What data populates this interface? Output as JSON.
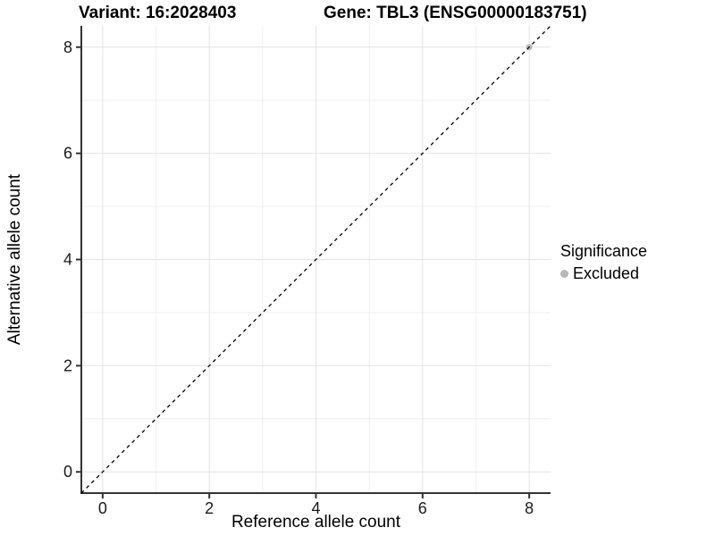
{
  "chart_data": {
    "type": "scatter",
    "titles": {
      "left": "Variant: 16:2028403",
      "right": "Gene: TBL3 (ENSG00000183751)"
    },
    "xlabel": "Reference allele count",
    "ylabel": "Alternative allele count",
    "xlim": [
      -0.4,
      8.4
    ],
    "ylim": [
      -0.4,
      8.4
    ],
    "xticks": [
      0,
      2,
      4,
      6,
      8
    ],
    "yticks": [
      0,
      2,
      4,
      6,
      8
    ],
    "minor_gridlines_x": [
      1,
      3,
      5,
      7
    ],
    "minor_gridlines_y": [
      1,
      3,
      5,
      7
    ],
    "grid": "on",
    "identity_line": {
      "style": "dashed",
      "color": "#000000",
      "from": [
        -0.4,
        -0.4
      ],
      "to": [
        8.4,
        8.4
      ]
    },
    "series": [
      {
        "name": "Excluded",
        "color": "#b8b8b8",
        "points": [
          [
            8,
            8
          ]
        ]
      }
    ],
    "legend": {
      "title": "Significance",
      "position": "right",
      "items": [
        {
          "label": "Excluded",
          "color": "#b8b8b8"
        }
      ]
    }
  },
  "colors": {
    "background": "#ffffff",
    "grid_major": "#e4e4e4",
    "grid_minor": "#f0f0f0",
    "axis": "#333333",
    "text": "#000000",
    "excluded_point": "#b8b8b8"
  }
}
